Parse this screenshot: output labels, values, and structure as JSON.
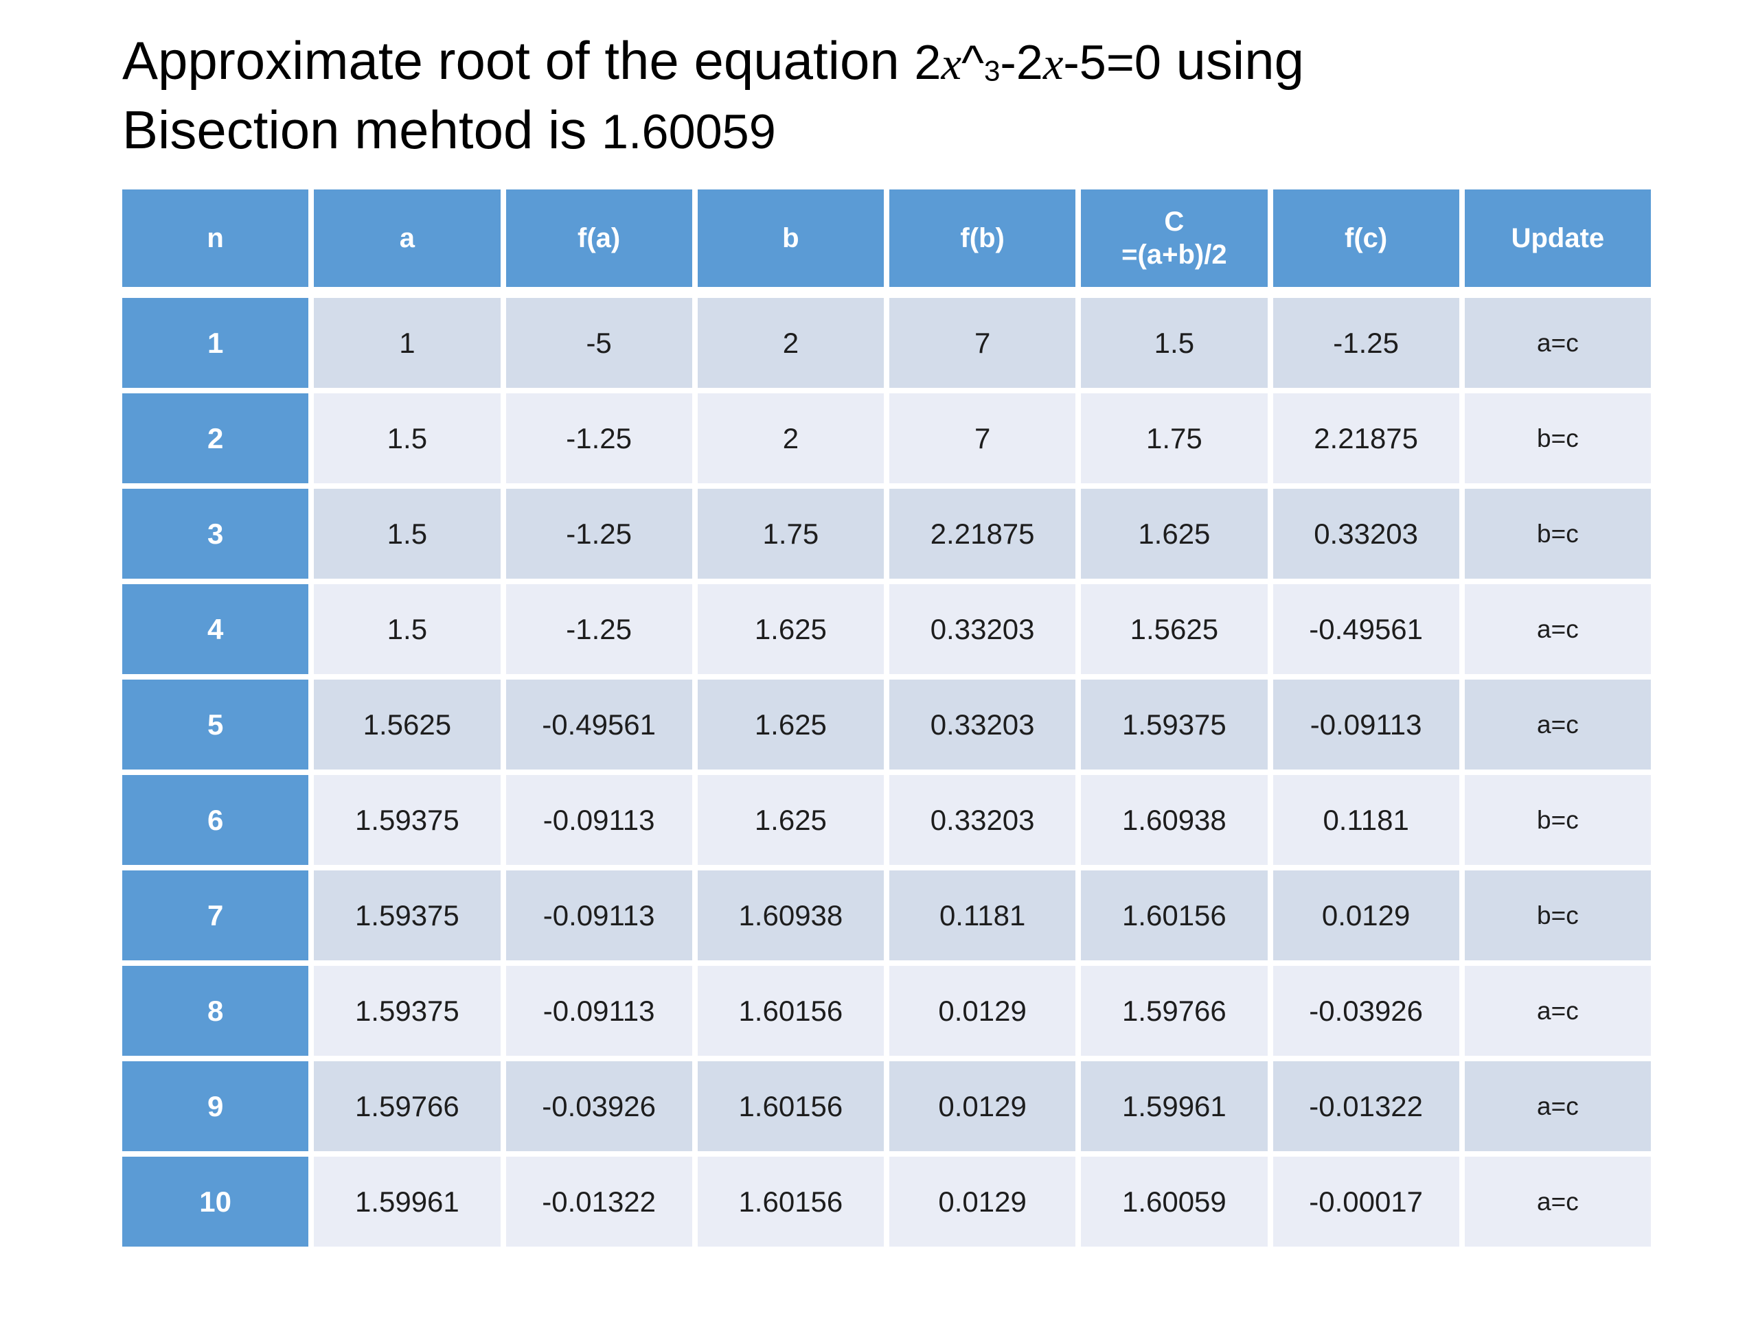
{
  "title": {
    "text_before_equation": "Approximate root of the equation ",
    "equation": {
      "coef1": "2",
      "x1": "x",
      "caret": "^",
      "power": "3",
      "mid": "-2",
      "x2": "x",
      "tail": "-5=0"
    },
    "text_after_equation": " using",
    "line2_text": "Bisection mehtod is ",
    "root_value": "1.60059"
  },
  "table": {
    "headers": [
      "n",
      "a",
      "f(a)",
      "b",
      "f(b)",
      "C",
      "f(c)",
      "Update"
    ],
    "c_header_line2": "=(a+b)/2",
    "rows": [
      [
        "1",
        "1",
        "-5",
        "2",
        "7",
        "1.5",
        "-1.25",
        "a=c"
      ],
      [
        "2",
        "1.5",
        "-1.25",
        "2",
        "7",
        "1.75",
        "2.21875",
        "b=c"
      ],
      [
        "3",
        "1.5",
        "-1.25",
        "1.75",
        "2.21875",
        "1.625",
        "0.33203",
        "b=c"
      ],
      [
        "4",
        "1.5",
        "-1.25",
        "1.625",
        "0.33203",
        "1.5625",
        "-0.49561",
        "a=c"
      ],
      [
        "5",
        "1.5625",
        "-0.49561",
        "1.625",
        "0.33203",
        "1.59375",
        "-0.09113",
        "a=c"
      ],
      [
        "6",
        "1.59375",
        "-0.09113",
        "1.625",
        "0.33203",
        "1.60938",
        "0.1181",
        "b=c"
      ],
      [
        "7",
        "1.59375",
        "-0.09113",
        "1.60938",
        "0.1181",
        "1.60156",
        "0.0129",
        "b=c"
      ],
      [
        "8",
        "1.59375",
        "-0.09113",
        "1.60156",
        "0.0129",
        "1.59766",
        "-0.03926",
        "a=c"
      ],
      [
        "9",
        "1.59766",
        "-0.03926",
        "1.60156",
        "0.0129",
        "1.59961",
        "-0.01322",
        "a=c"
      ],
      [
        "10",
        "1.59961",
        "-0.01322",
        "1.60156",
        "0.0129",
        "1.60059",
        "-0.00017",
        "a=c"
      ]
    ]
  },
  "colors": {
    "header_blue": "#5b9bd5",
    "row_odd": "#d3dcea",
    "row_even": "#eaedf6",
    "cell_text": "#1d1d1d",
    "title_text": "#000000",
    "background": "#ffffff"
  }
}
